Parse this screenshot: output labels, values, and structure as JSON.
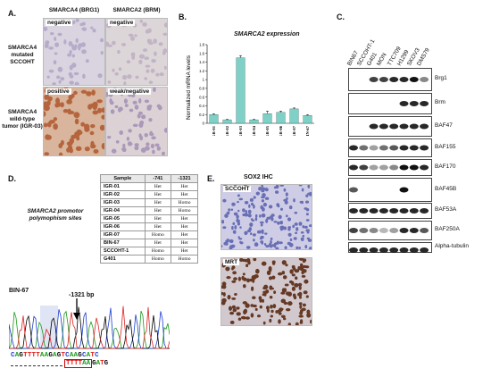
{
  "panels": {
    "A": "A.",
    "B": "B.",
    "C": "C.",
    "D": "D.",
    "E": "E."
  },
  "panelA": {
    "col1": "SMARCA4 (BRG1)",
    "col2": "SMARCA2 (BRM)",
    "row1": "SMARCA4 mutated SCCOHT",
    "row2": "SMARCA4 wild-type tumor (IGR-03)",
    "tiles": [
      "negative",
      "negative",
      "positive",
      "weak/negative"
    ]
  },
  "chart_data": {
    "type": "bar",
    "title": "SMARCA2 expression",
    "ylabel": "Normalized mRNA levels",
    "categories": [
      "IGR-01",
      "IGR-02",
      "IGR-03",
      "IGR-04",
      "IGR-05",
      "IGR-06",
      "IGR-07",
      "BIN-67"
    ],
    "values": [
      0.2,
      0.08,
      1.5,
      0.08,
      0.22,
      0.25,
      0.33,
      0.18
    ],
    "errors": [
      0.02,
      0.01,
      0.05,
      0.01,
      0.06,
      0.03,
      0.02,
      0.02
    ],
    "ylim": [
      0,
      1.8
    ],
    "yticks": [
      "0",
      "0.2",
      "0.4",
      "0.6",
      "0.8",
      "1",
      "1.2",
      "1.4",
      "1.6",
      "1.8"
    ],
    "grid": false,
    "bar_color": "#7fd1c8"
  },
  "panelC": {
    "lanes": [
      "BIN67",
      "SCCOHT-1",
      "G401",
      "MON",
      "TTC709",
      "H1299",
      "SKOV3",
      "DMS79"
    ],
    "proteins": [
      "Brg1",
      "Brm",
      "BAF47",
      "BAF155",
      "BAF170",
      "BAF45B",
      "BAF53A",
      "BAF250A",
      "Alpha-tubulin"
    ]
  },
  "panelD": {
    "caption": "SMARCA2 promotor polymophism sites",
    "headers": [
      "Sample",
      "-741",
      "-1321"
    ],
    "rows": [
      [
        "IGR-01",
        "Het",
        "Het"
      ],
      [
        "IGR-02",
        "Het",
        "Het"
      ],
      [
        "IGR-03",
        "Het",
        "Homo"
      ],
      [
        "IGR-04",
        "Het",
        "Homo"
      ],
      [
        "IGR-05",
        "Het",
        "Het"
      ],
      [
        "IGR-06",
        "Het",
        "Het"
      ],
      [
        "IGR-07",
        "Homo",
        "Het"
      ],
      [
        "BIN-67",
        "Het",
        "Het"
      ],
      [
        "SCCOHT-1",
        "Homo",
        "Het"
      ],
      [
        "G401",
        "Homo",
        "Homo"
      ]
    ],
    "trace_label": "BIN-67",
    "bp_label": "-1321 bp",
    "seq1": "CAGTTTTAAGAGTCAAGCATC",
    "seq2": "TTTTAAGATG"
  },
  "panelE": {
    "title": "SOX2 IHC",
    "tile1": "SCCOHT",
    "tile2": "MRT"
  }
}
